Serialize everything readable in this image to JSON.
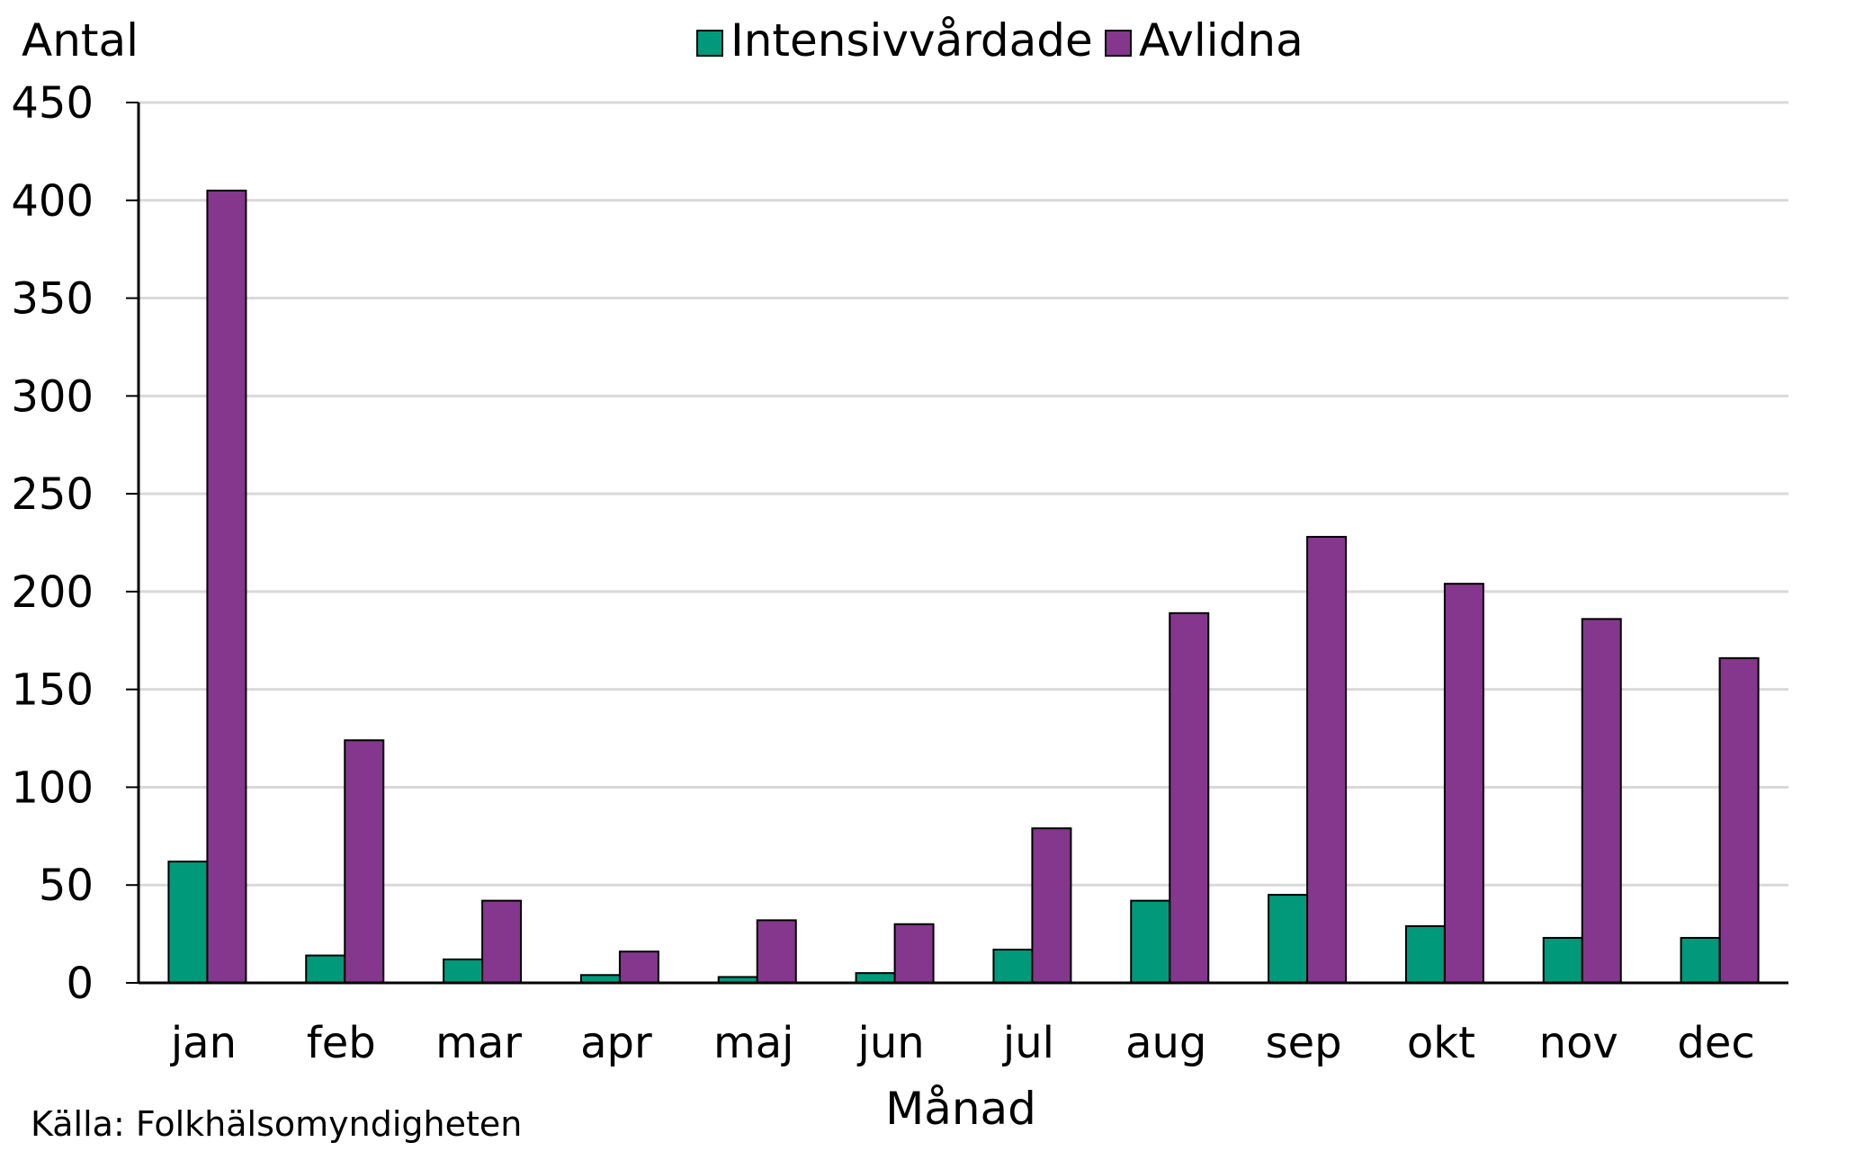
{
  "chart_data": {
    "type": "bar",
    "ylabel": "Antal",
    "xlabel": "Månad",
    "ylim": [
      0,
      450
    ],
    "yticks": [
      0,
      50,
      100,
      150,
      200,
      250,
      300,
      350,
      400,
      450
    ],
    "grid": true,
    "legend_position": "top-center",
    "categories": [
      "jan",
      "feb",
      "mar",
      "apr",
      "maj",
      "jun",
      "jul",
      "aug",
      "sep",
      "okt",
      "nov",
      "dec"
    ],
    "series": [
      {
        "name": "Intensivvårdade",
        "color": "#009a7a",
        "values": [
          62,
          14,
          12,
          4,
          3,
          5,
          17,
          42,
          45,
          29,
          23,
          23
        ]
      },
      {
        "name": "Avlidna",
        "color": "#84378c",
        "values": [
          405,
          124,
          42,
          16,
          32,
          30,
          79,
          189,
          228,
          204,
          186,
          166
        ]
      }
    ]
  },
  "source_text": "Källa: Folkhälsomyndigheten"
}
